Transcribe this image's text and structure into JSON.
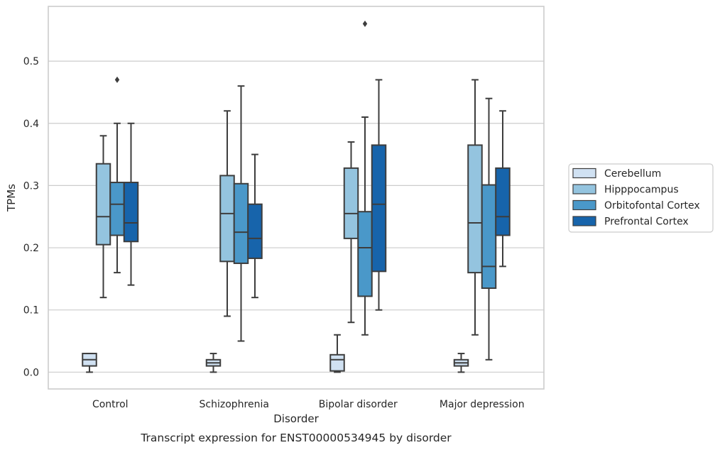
{
  "chart_data": {
    "type": "boxplot",
    "xlabel": "Disorder",
    "ylabel": "TPMs",
    "caption": "Transcript expression for ENST00000534945 by disorder",
    "ylim": [
      -0.027,
      0.588
    ],
    "yticks": [
      "0.0",
      "0.1",
      "0.2",
      "0.3",
      "0.4",
      "0.5"
    ],
    "grid": "horizontal",
    "legend_position": "right",
    "categories": [
      "Control",
      "Schizophrenia",
      "Bipolar disorder",
      "Major depression"
    ],
    "series": [
      {
        "name": "Cerebellum",
        "color": "#d0e1f2",
        "boxes": [
          {
            "whislo": 0.0,
            "q1": 0.01,
            "med": 0.02,
            "q3": 0.03,
            "whishi": 0.03,
            "fliers": []
          },
          {
            "whislo": 0.0,
            "q1": 0.01,
            "med": 0.015,
            "q3": 0.02,
            "whishi": 0.03,
            "fliers": []
          },
          {
            "whislo": 0.0,
            "q1": 0.002,
            "med": 0.02,
            "q3": 0.028,
            "whishi": 0.06,
            "fliers": []
          },
          {
            "whislo": 0.0,
            "q1": 0.01,
            "med": 0.015,
            "q3": 0.02,
            "whishi": 0.03,
            "fliers": []
          }
        ]
      },
      {
        "name": "Hipppocampus",
        "color": "#94c4df",
        "boxes": [
          {
            "whislo": 0.12,
            "q1": 0.205,
            "med": 0.25,
            "q3": 0.335,
            "whishi": 0.38,
            "fliers": []
          },
          {
            "whislo": 0.09,
            "q1": 0.178,
            "med": 0.255,
            "q3": 0.316,
            "whishi": 0.42,
            "fliers": []
          },
          {
            "whislo": 0.08,
            "q1": 0.215,
            "med": 0.255,
            "q3": 0.328,
            "whishi": 0.37,
            "fliers": []
          },
          {
            "whislo": 0.06,
            "q1": 0.16,
            "med": 0.24,
            "q3": 0.365,
            "whishi": 0.47,
            "fliers": []
          }
        ]
      },
      {
        "name": "Orbitofontal Cortex",
        "color": "#4a98c9",
        "boxes": [
          {
            "whislo": 0.16,
            "q1": 0.22,
            "med": 0.27,
            "q3": 0.305,
            "whishi": 0.4,
            "fliers": [
              0.47
            ]
          },
          {
            "whislo": 0.05,
            "q1": 0.175,
            "med": 0.225,
            "q3": 0.303,
            "whishi": 0.46,
            "fliers": []
          },
          {
            "whislo": 0.06,
            "q1": 0.122,
            "med": 0.2,
            "q3": 0.258,
            "whishi": 0.41,
            "fliers": [
              0.56
            ]
          },
          {
            "whislo": 0.02,
            "q1": 0.135,
            "med": 0.17,
            "q3": 0.301,
            "whishi": 0.44,
            "fliers": []
          }
        ]
      },
      {
        "name": "Prefrontal Cortex",
        "color": "#1764ab",
        "boxes": [
          {
            "whislo": 0.14,
            "q1": 0.21,
            "med": 0.24,
            "q3": 0.305,
            "whishi": 0.4,
            "fliers": []
          },
          {
            "whislo": 0.12,
            "q1": 0.183,
            "med": 0.215,
            "q3": 0.27,
            "whishi": 0.35,
            "fliers": []
          },
          {
            "whislo": 0.1,
            "q1": 0.162,
            "med": 0.27,
            "q3": 0.365,
            "whishi": 0.47,
            "fliers": []
          },
          {
            "whislo": 0.17,
            "q1": 0.22,
            "med": 0.25,
            "q3": 0.328,
            "whishi": 0.42,
            "fliers": []
          }
        ]
      }
    ]
  }
}
